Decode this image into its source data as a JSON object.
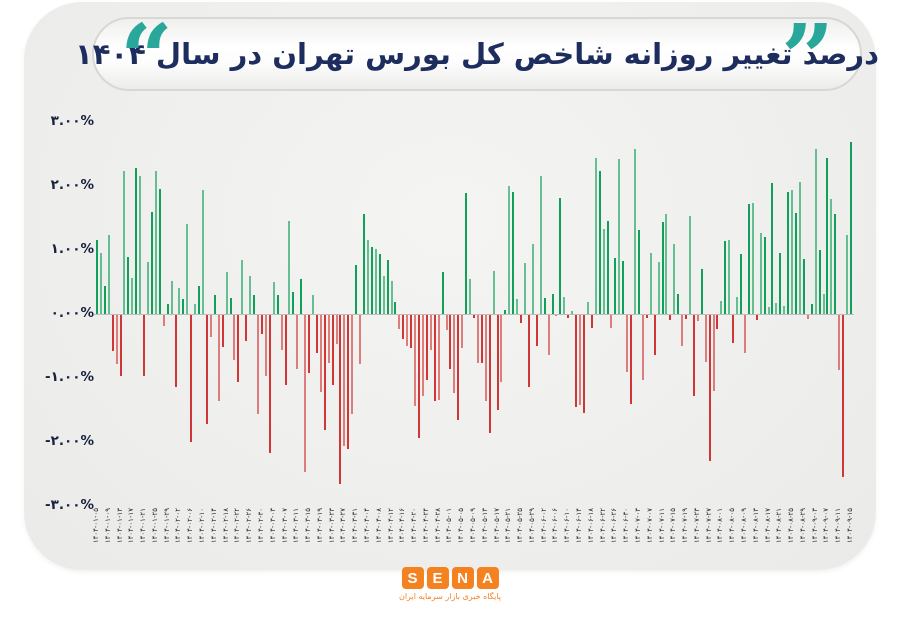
{
  "title": {
    "pre": "درصد تغییر روزانه",
    "highlight": "شاخص",
    "post": "کل بورس تهران در سال ۱۴۰۴",
    "open_quote": "”",
    "close_quote": "“"
  },
  "logo": {
    "letters": [
      "S",
      "E",
      "N",
      "A"
    ],
    "tagline": "پایگاه خبری بازار سرمایه ایران"
  },
  "colors": {
    "accent_teal": "#2aa79b",
    "title_navy": "#1d2d5e",
    "highlight_orange": "#f7941d",
    "bar_green": "#10a05a",
    "bar_red": "#d13636",
    "logo_orange": "#f58220",
    "axis_line": "#bdbdbd"
  },
  "chart_data": {
    "type": "bar",
    "title": "درصد تغییر روزانه شاخص کل بورس تهران در سال ۱۴۰۴",
    "xlabel": "",
    "ylabel": "درصد تغییر روزانه",
    "ylim": [
      -3,
      3
    ],
    "grid": false,
    "legend": false,
    "y_ticks": [
      {
        "label": "۳.۰۰%",
        "value": 3
      },
      {
        "label": "۲.۰۰%",
        "value": 2
      },
      {
        "label": "۱.۰۰%",
        "value": 1
      },
      {
        "label": "۰.۰۰%",
        "value": 0
      },
      {
        "label": "-۱.۰۰%",
        "value": -1
      },
      {
        "label": "-۲.۰۰%",
        "value": -2
      },
      {
        "label": "-۳.۰۰%",
        "value": -3
      }
    ],
    "x_label_every_n_bars": 3,
    "x_labels": [
      "۱۴۰۴-۰۱-۰۵",
      "۱۴۰۴-۰۱-۰۹",
      "۱۴۰۴-۰۱-۱۳",
      "۱۴۰۴-۰۱-۱۷",
      "۱۴۰۴-۰۱-۲۱",
      "۱۴۰۴-۰۱-۲۵",
      "۱۴۰۴-۰۱-۲۹",
      "۱۴۰۴-۰۲-۰۲",
      "۱۴۰۴-۰۲-۰۶",
      "۱۴۰۴-۰۲-۱۰",
      "۱۴۰۴-۰۲-۱۴",
      "۱۴۰۴-۰۲-۱۸",
      "۱۴۰۴-۰۲-۲۲",
      "۱۴۰۴-۰۲-۲۶",
      "۱۴۰۴-۰۲-۳۰",
      "۱۴۰۴-۰۳-۰۳",
      "۱۴۰۴-۰۳-۰۷",
      "۱۴۰۴-۰۳-۱۱",
      "۱۴۰۴-۰۳-۱۵",
      "۱۴۰۴-۰۳-۱۹",
      "۱۴۰۴-۰۳-۲۳",
      "۱۴۰۴-۰۳-۲۷",
      "۱۴۰۴-۰۳-۳۱",
      "۱۴۰۴-۰۴-۰۴",
      "۱۴۰۴-۰۴-۰۸",
      "۱۴۰۴-۰۴-۱۲",
      "۱۴۰۴-۰۴-۱۶",
      "۱۴۰۴-۰۴-۲۰",
      "۱۴۰۴-۰۴-۲۴",
      "۱۴۰۴-۰۴-۲۸",
      "۱۴۰۴-۰۵-۰۱",
      "۱۴۰۴-۰۵-۰۵",
      "۱۴۰۴-۰۵-۰۹",
      "۱۴۰۴-۰۵-۱۳",
      "۱۴۰۴-۰۵-۱۷",
      "۱۴۰۴-۰۵-۲۱",
      "۱۴۰۴-۰۵-۲۵",
      "۱۴۰۴-۰۵-۲۹",
      "۱۴۰۴-۰۶-۰۲",
      "۱۴۰۴-۰۶-۰۶",
      "۱۴۰۴-۰۶-۱۰",
      "۱۴۰۴-۰۶-۱۴",
      "۱۴۰۴-۰۶-۱۸",
      "۱۴۰۴-۰۶-۲۲",
      "۱۴۰۴-۰۶-۲۶",
      "۱۴۰۴-۰۶-۳۰",
      "۱۴۰۴-۰۷-۰۳",
      "۱۴۰۴-۰۷-۰۷",
      "۱۴۰۴-۰۷-۱۱",
      "۱۴۰۴-۰۷-۱۵",
      "۱۴۰۴-۰۷-۱۹",
      "۱۴۰۴-۰۷-۲۳",
      "۱۴۰۴-۰۷-۲۷",
      "۱۴۰۴-۰۸-۰۱",
      "۱۴۰۴-۰۸-۰۵",
      "۱۴۰۴-۰۸-۰۹",
      "۱۴۰۴-۰۸-۱۳",
      "۱۴۰۴-۰۸-۱۷",
      "۱۴۰۴-۰۸-۲۱",
      "۱۴۰۴-۰۸-۲۵",
      "۱۴۰۴-۰۸-۲۹",
      "۱۴۰۴-۰۹-۰۳",
      "۱۴۰۴-۰۹-۰۷",
      "۱۴۰۴-۰۹-۱۱",
      "۱۴۰۴-۰۹-۱۵"
    ],
    "values": [
      1.16,
      0.96,
      0.44,
      1.24,
      -0.56,
      -0.77,
      -0.96,
      2.23,
      0.89,
      0.57,
      2.28,
      2.15,
      -0.95,
      0.82,
      1.59,
      2.23,
      1.95,
      -0.17,
      0.15,
      0.52,
      -1.12,
      0.41,
      0.23,
      1.41,
      -1.98,
      0.16,
      0.44,
      1.93,
      -1.7,
      -0.35,
      0.3,
      -1.35,
      -0.5,
      0.65,
      0.25,
      -0.7,
      -1.05,
      0.85,
      -0.4,
      0.6,
      0.3,
      -1.55,
      -0.3,
      -0.95,
      -2.15,
      0.5,
      0.3,
      -0.55,
      -1.1,
      1.45,
      0.35,
      -0.85,
      0.55,
      -2.45,
      -0.9,
      0.3,
      -0.6,
      -1.2,
      -1.8,
      -0.75,
      -1.1,
      -0.45,
      -2.64,
      -2.04,
      -2.09,
      -1.54,
      0.77,
      -0.77,
      1.57,
      1.16,
      1.04,
      1.02,
      0.93,
      0.59,
      0.84,
      0.52,
      0.19,
      -0.22,
      -0.37,
      -0.48,
      -0.51,
      -1.42,
      -1.92,
      -1.26,
      -1.01,
      -0.54,
      -1.35,
      -1.33,
      0.65,
      -0.23,
      -0.85,
      -1.22,
      -1.64,
      -0.51,
      1.89,
      0.54,
      -0.04,
      -0.75,
      -0.75,
      -1.35,
      -1.85,
      0.67,
      -1.48,
      -1.04,
      0.07,
      2.0,
      1.91,
      0.23,
      -0.12,
      0.79,
      -1.13,
      1.1,
      -0.49,
      2.15,
      0.25,
      -0.63,
      0.32,
      -0.02,
      1.82,
      0.26,
      -0.04,
      0.05,
      -1.44,
      -1.4,
      -1.53,
      0.19,
      -0.21,
      2.44,
      2.24,
      1.33,
      1.45,
      -0.21,
      0.87,
      2.42,
      0.83,
      -0.89,
      -1.39,
      2.58,
      1.32,
      -1.02,
      -0.05,
      0.95,
      -0.63,
      0.82,
      1.44,
      1.57,
      -0.08,
      1.1,
      0.32,
      -0.49,
      -0.06,
      1.53,
      -1.26,
      -0.1,
      0.7,
      -0.74,
      -2.28,
      -1.18,
      -0.22,
      0.21,
      1.14,
      1.16,
      -0.44,
      0.26,
      0.93,
      -0.6,
      1.72,
      1.74,
      -0.08,
      1.26,
      1.21,
      0.11,
      2.05,
      0.17,
      0.95,
      0.12,
      1.91,
      1.93,
      1.58,
      2.07,
      0.86,
      -0.07,
      0.16,
      2.58,
      1.0,
      0.31,
      2.44,
      1.79,
      1.56,
      -0.86,
      -2.53,
      1.24,
      2.68
    ],
    "positive_color": "#10a05a",
    "negative_color": "#d13636"
  }
}
